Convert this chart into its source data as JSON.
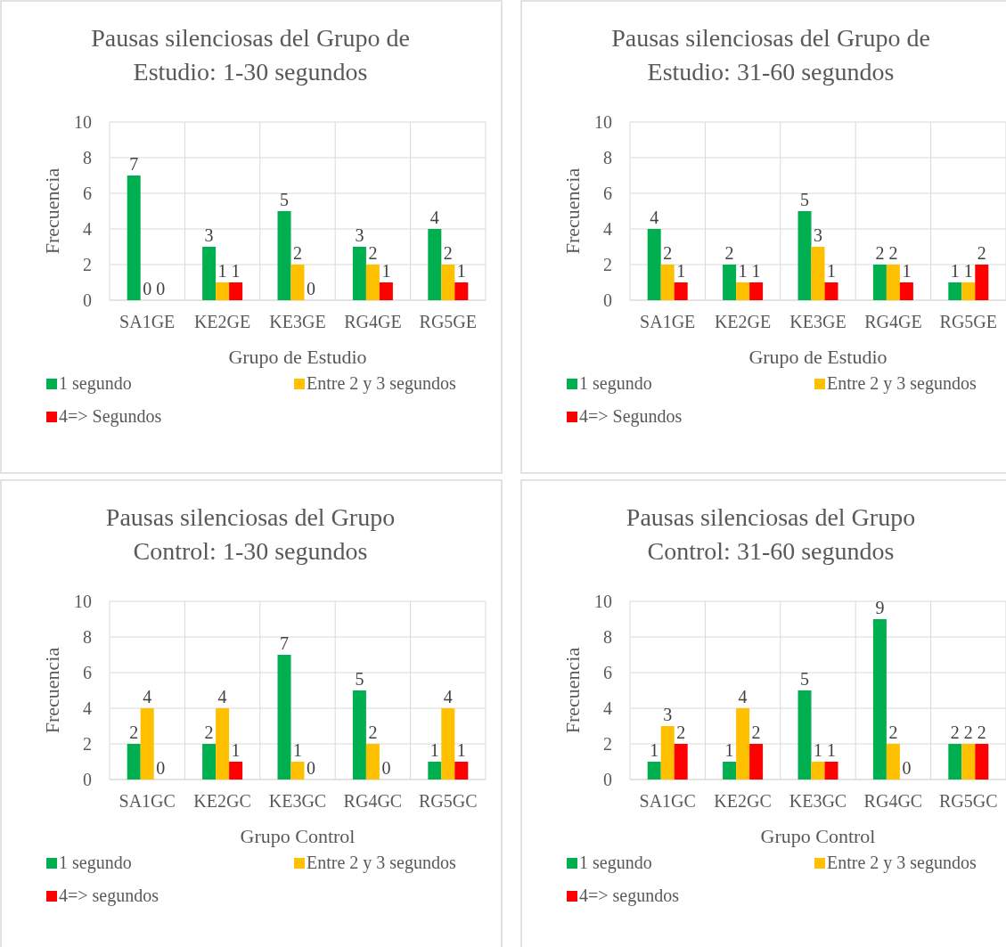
{
  "chart_data": [
    {
      "type": "bar",
      "title": "Pausas silenciosas del Grupo de Estudio: 1-30 segundos",
      "xlabel": "Grupo de Estudio",
      "ylabel": "Frecuencia",
      "categories": [
        "SA1GE",
        "KE2GE",
        "KE3GE",
        "RG4GE",
        "RG5GE"
      ],
      "series": [
        {
          "name": "1 segundo",
          "color": "#00b050",
          "values": [
            7,
            3,
            5,
            3,
            4
          ]
        },
        {
          "name": "Entre 2 y 3 segundos",
          "color": "#ffc000",
          "values": [
            0,
            1,
            2,
            2,
            2
          ]
        },
        {
          "name": "4=> Segundos",
          "color": "#ff0000",
          "values": [
            0,
            1,
            0,
            1,
            1
          ]
        }
      ],
      "ylim": [
        0,
        10
      ],
      "yticks": [
        0,
        2,
        4,
        6,
        8,
        10
      ],
      "grid": true,
      "legend": "bottom",
      "data_labels": true
    },
    {
      "type": "bar",
      "title": "Pausas silenciosas del Grupo de Estudio: 31-60 segundos",
      "xlabel": "Grupo de Estudio",
      "ylabel": "Frecuencia",
      "categories": [
        "SA1GE",
        "KE2GE",
        "KE3GE",
        "RG4GE",
        "RG5GE"
      ],
      "series": [
        {
          "name": "1 segundo",
          "color": "#00b050",
          "values": [
            4,
            2,
            5,
            2,
            1
          ]
        },
        {
          "name": "Entre 2 y 3 segundos",
          "color": "#ffc000",
          "values": [
            2,
            1,
            3,
            2,
            1
          ]
        },
        {
          "name": "4=> Segundos",
          "color": "#ff0000",
          "values": [
            1,
            1,
            1,
            1,
            2
          ]
        }
      ],
      "ylim": [
        0,
        10
      ],
      "yticks": [
        0,
        2,
        4,
        6,
        8,
        10
      ],
      "grid": true,
      "legend": "bottom",
      "data_labels": true
    },
    {
      "type": "bar",
      "title": "Pausas silenciosas del Grupo Control: 1-30 segundos",
      "xlabel": "Grupo Control",
      "ylabel": "Frecuencia",
      "categories": [
        "SA1GC",
        "KE2GC",
        "KE3GC",
        "RG4GC",
        "RG5GC"
      ],
      "series": [
        {
          "name": "1 segundo",
          "color": "#00b050",
          "values": [
            2,
            2,
            7,
            5,
            1
          ]
        },
        {
          "name": "Entre 2 y 3 segundos",
          "color": "#ffc000",
          "values": [
            4,
            4,
            1,
            2,
            4
          ]
        },
        {
          "name": "4=> segundos",
          "color": "#ff0000",
          "values": [
            0,
            1,
            0,
            0,
            1
          ]
        }
      ],
      "ylim": [
        0,
        10
      ],
      "yticks": [
        0,
        2,
        4,
        6,
        8,
        10
      ],
      "grid": true,
      "legend": "bottom",
      "data_labels": true
    },
    {
      "type": "bar",
      "title": "Pausas silenciosas del Grupo Control: 31-60 segundos",
      "xlabel": "Grupo Control",
      "ylabel": "Frecuencia",
      "categories": [
        "SA1GC",
        "KE2GC",
        "KE3GC",
        "RG4GC",
        "RG5GC"
      ],
      "series": [
        {
          "name": "1 segundo",
          "color": "#00b050",
          "values": [
            1,
            1,
            5,
            9,
            2
          ]
        },
        {
          "name": "Entre 2 y 3 segundos",
          "color": "#ffc000",
          "values": [
            3,
            4,
            1,
            2,
            2
          ]
        },
        {
          "name": "4=> segundos",
          "color": "#ff0000",
          "values": [
            2,
            2,
            1,
            0,
            2
          ]
        }
      ],
      "ylim": [
        0,
        10
      ],
      "yticks": [
        0,
        2,
        4,
        6,
        8,
        10
      ],
      "grid": true,
      "legend": "bottom",
      "data_labels": true
    }
  ]
}
